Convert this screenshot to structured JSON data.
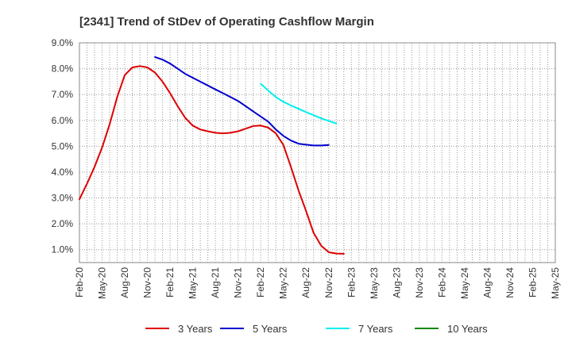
{
  "chart_data": {
    "type": "line",
    "title": "[2341]  Trend of StDev of Operating Cashflow Margin",
    "xlabel": "",
    "ylabel": "",
    "ylim": [
      0.5,
      9.0
    ],
    "y_ticks": [
      "9.0%",
      "8.0%",
      "7.0%",
      "6.0%",
      "5.0%",
      "4.0%",
      "3.0%",
      "2.0%",
      "1.0%"
    ],
    "y_tick_values": [
      9,
      8,
      7,
      6,
      5,
      4,
      3,
      2,
      1
    ],
    "x_tick_labels": [
      "Feb-20",
      "May-20",
      "Aug-20",
      "Nov-20",
      "Feb-21",
      "May-21",
      "Aug-21",
      "Nov-21",
      "Feb-22",
      "May-22",
      "Aug-22",
      "Nov-22",
      "Feb-23",
      "May-23",
      "Aug-23",
      "Nov-23",
      "Feb-24",
      "May-24",
      "Aug-24",
      "Nov-24",
      "Feb-25",
      "May-25"
    ],
    "grid": true,
    "legend_position": "bottom",
    "series": [
      {
        "name": "3 Years",
        "color": "#dd0000",
        "points": [
          [
            0,
            2.95
          ],
          [
            1,
            3.55
          ],
          [
            2,
            4.2
          ],
          [
            3,
            4.95
          ],
          [
            4,
            5.85
          ],
          [
            5,
            6.9
          ],
          [
            6,
            7.75
          ],
          [
            7,
            8.05
          ],
          [
            8,
            8.1
          ],
          [
            9,
            8.05
          ],
          [
            10,
            7.85
          ],
          [
            11,
            7.5
          ],
          [
            12,
            7.05
          ],
          [
            13,
            6.55
          ],
          [
            14,
            6.1
          ],
          [
            15,
            5.8
          ],
          [
            16,
            5.65
          ],
          [
            17,
            5.58
          ],
          [
            18,
            5.52
          ],
          [
            19,
            5.5
          ],
          [
            20,
            5.52
          ],
          [
            21,
            5.58
          ],
          [
            22,
            5.68
          ],
          [
            23,
            5.78
          ],
          [
            24,
            5.8
          ],
          [
            25,
            5.72
          ],
          [
            26,
            5.5
          ],
          [
            27,
            5.05
          ],
          [
            28,
            4.2
          ],
          [
            29,
            3.3
          ],
          [
            30,
            2.5
          ],
          [
            31,
            1.65
          ],
          [
            32,
            1.15
          ],
          [
            33,
            0.9
          ],
          [
            34,
            0.85
          ],
          [
            35,
            0.84
          ]
        ]
      },
      {
        "name": "5 Years",
        "color": "#0000cc",
        "points": [
          [
            10,
            8.45
          ],
          [
            11,
            8.35
          ],
          [
            12,
            8.2
          ],
          [
            13,
            8.0
          ],
          [
            14,
            7.8
          ],
          [
            15,
            7.65
          ],
          [
            16,
            7.5
          ],
          [
            17,
            7.35
          ],
          [
            18,
            7.2
          ],
          [
            19,
            7.05
          ],
          [
            20,
            6.9
          ],
          [
            21,
            6.75
          ],
          [
            22,
            6.55
          ],
          [
            23,
            6.35
          ],
          [
            24,
            6.15
          ],
          [
            25,
            5.95
          ],
          [
            26,
            5.65
          ],
          [
            27,
            5.4
          ],
          [
            28,
            5.22
          ],
          [
            29,
            5.1
          ],
          [
            30,
            5.06
          ],
          [
            31,
            5.03
          ],
          [
            32,
            5.03
          ],
          [
            33,
            5.05
          ]
        ]
      },
      {
        "name": "7 Years",
        "color": "#00eeee",
        "points": [
          [
            24,
            7.42
          ],
          [
            25,
            7.15
          ],
          [
            26,
            6.9
          ],
          [
            27,
            6.72
          ],
          [
            28,
            6.58
          ],
          [
            29,
            6.45
          ],
          [
            30,
            6.32
          ],
          [
            31,
            6.2
          ],
          [
            32,
            6.08
          ],
          [
            33,
            5.98
          ],
          [
            34,
            5.88
          ]
        ]
      },
      {
        "name": "10 Years",
        "color": "#008800",
        "points": []
      }
    ]
  }
}
